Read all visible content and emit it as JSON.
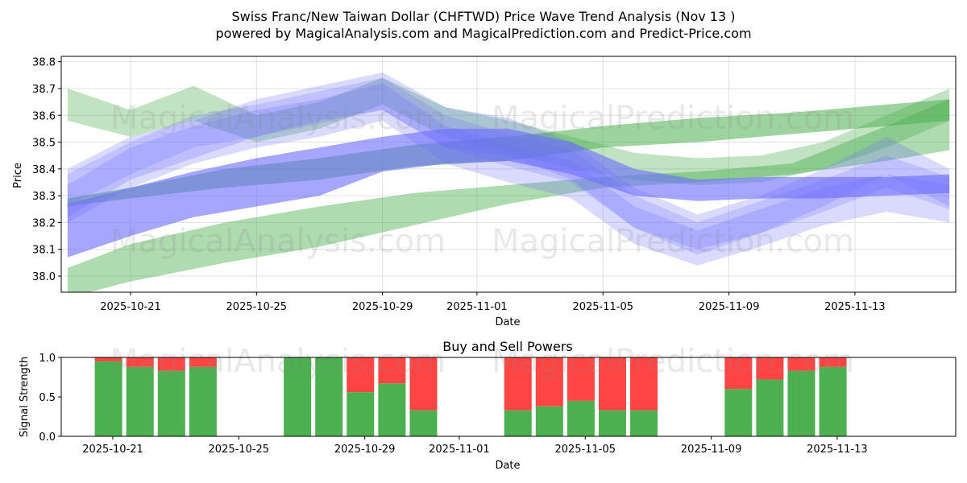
{
  "figure": {
    "title_line1": "Swiss Franc/New Taiwan Dollar (CHFTWD) Price Wave Trend Analysis (Nov 13 )",
    "title_line2": "powered by MagicalAnalysis.com and MagicalPrediction.com and Predict-Price.com",
    "watermarks": [
      "MagicalAnalysis.com",
      "MagicalPrediction.com"
    ]
  },
  "colors": {
    "green": "#4caf50",
    "blue": "#6a6aff",
    "red": "#ff4444"
  },
  "chart_data": [
    {
      "type": "area",
      "title": "",
      "xlabel": "Date",
      "ylabel": "Price",
      "x_start_day": 0,
      "x_end_day": 26.1,
      "xlim_day": [
        -2.2,
        26.2
      ],
      "ylim": [
        37.94,
        38.82
      ],
      "yticks": [
        38.0,
        38.1,
        38.2,
        38.3,
        38.4,
        38.5,
        38.6,
        38.7,
        38.8
      ],
      "ytick_labels": [
        "38.0",
        "38.1",
        "38.2",
        "38.3",
        "38.4",
        "38.5",
        "38.6",
        "38.7",
        "38.8"
      ],
      "xticks_day": [
        0,
        4,
        8,
        11,
        15,
        19,
        23
      ],
      "xtick_labels": [
        "2025-10-21",
        "2025-10-25",
        "2025-10-29",
        "2025-11-01",
        "2025-11-05",
        "2025-11-09",
        "2025-11-13"
      ],
      "series": [
        {
          "name": "green-wave-low",
          "color": "green",
          "opacity": 0.45,
          "x": [
            -2,
            0,
            3,
            6,
            9,
            12,
            15,
            18,
            21,
            24,
            26
          ],
          "upper": [
            38.03,
            38.12,
            38.2,
            38.26,
            38.31,
            38.34,
            38.37,
            38.39,
            38.42,
            38.56,
            38.66
          ],
          "lower": [
            37.92,
            37.98,
            38.05,
            38.11,
            38.19,
            38.27,
            38.33,
            38.35,
            38.38,
            38.43,
            38.47
          ]
        },
        {
          "name": "green-wave-mid",
          "color": "green",
          "opacity": 0.55,
          "x": [
            -2,
            0,
            3,
            6,
            9,
            12,
            15,
            18,
            21,
            24,
            26
          ],
          "upper": [
            38.29,
            38.33,
            38.4,
            38.44,
            38.49,
            38.52,
            38.56,
            38.59,
            38.61,
            38.64,
            38.66
          ],
          "lower": [
            38.26,
            38.29,
            38.33,
            38.36,
            38.41,
            38.43,
            38.48,
            38.5,
            38.53,
            38.56,
            38.58
          ]
        },
        {
          "name": "green-wave-top",
          "color": "green",
          "opacity": 0.35,
          "x": [
            -2,
            0,
            2,
            4,
            6,
            8,
            10,
            12,
            14,
            16,
            18,
            20,
            22,
            24,
            26
          ],
          "upper": [
            38.7,
            38.62,
            38.71,
            38.6,
            38.65,
            38.74,
            38.63,
            38.58,
            38.52,
            38.46,
            38.44,
            38.45,
            38.5,
            38.6,
            38.7
          ],
          "lower": [
            38.58,
            38.52,
            38.58,
            38.5,
            38.55,
            38.64,
            38.52,
            38.46,
            38.4,
            38.36,
            38.34,
            38.35,
            38.4,
            38.48,
            38.58
          ]
        },
        {
          "name": "blue-wave-band",
          "color": "blue",
          "opacity": 0.6,
          "x": [
            -2,
            0,
            2,
            4,
            6,
            8,
            10,
            12,
            14,
            16,
            18,
            20,
            22,
            24,
            26
          ],
          "upper": [
            38.27,
            38.33,
            38.39,
            38.44,
            38.48,
            38.52,
            38.55,
            38.55,
            38.5,
            38.4,
            38.36,
            38.37,
            38.37,
            38.37,
            38.38
          ],
          "lower": [
            38.07,
            38.15,
            38.22,
            38.26,
            38.3,
            38.39,
            38.42,
            38.43,
            38.38,
            38.3,
            38.28,
            38.29,
            38.29,
            38.3,
            38.31
          ]
        },
        {
          "name": "blue-wave-1",
          "color": "blue",
          "opacity": 0.25,
          "x": [
            -2,
            0,
            2,
            4,
            6,
            8,
            10,
            12,
            14,
            16,
            18,
            20,
            22,
            24,
            26
          ],
          "upper": [
            38.4,
            38.52,
            38.58,
            38.66,
            38.71,
            38.76,
            38.63,
            38.59,
            38.5,
            38.33,
            38.23,
            38.3,
            38.4,
            38.52,
            38.4
          ],
          "lower": [
            38.22,
            38.36,
            38.44,
            38.52,
            38.58,
            38.62,
            38.48,
            38.45,
            38.36,
            38.18,
            38.1,
            38.16,
            38.26,
            38.38,
            38.26
          ]
        },
        {
          "name": "blue-wave-2",
          "color": "blue",
          "opacity": 0.25,
          "x": [
            -2,
            0,
            2,
            4,
            6,
            8,
            10,
            12,
            14,
            16,
            18,
            20,
            22,
            24,
            26
          ],
          "upper": [
            38.34,
            38.48,
            38.56,
            38.62,
            38.66,
            38.72,
            38.56,
            38.49,
            38.43,
            38.26,
            38.17,
            38.25,
            38.33,
            38.38,
            38.34
          ],
          "lower": [
            38.2,
            38.33,
            38.42,
            38.48,
            38.52,
            38.58,
            38.42,
            38.35,
            38.29,
            38.12,
            38.04,
            38.11,
            38.19,
            38.24,
            38.2
          ]
        },
        {
          "name": "blue-wave-3",
          "color": "blue",
          "opacity": 0.22,
          "x": [
            -2,
            0,
            2,
            4,
            6,
            8,
            10,
            12,
            14,
            16,
            18,
            20,
            22,
            24,
            26
          ],
          "upper": [
            38.38,
            38.5,
            38.6,
            38.64,
            38.69,
            38.74,
            38.6,
            38.53,
            38.47,
            38.3,
            38.2,
            38.28,
            38.36,
            38.45,
            38.37
          ],
          "lower": [
            38.26,
            38.38,
            38.48,
            38.52,
            38.57,
            38.62,
            38.48,
            38.41,
            38.35,
            38.18,
            38.08,
            38.16,
            38.24,
            38.33,
            38.25
          ]
        }
      ]
    },
    {
      "type": "bar",
      "title": "Buy and Sell Powers",
      "xlabel": "Date",
      "ylabel": "Signal Strength",
      "ylim": [
        0,
        1.0
      ],
      "yticks": [
        0,
        0.5,
        1.0
      ],
      "ytick_labels": [
        "0.0",
        "0.5",
        "1.0"
      ],
      "xlim_day": [
        -2.2,
        26.2
      ],
      "xticks_day": [
        0,
        4,
        8,
        11,
        15,
        19,
        23
      ],
      "xtick_labels": [
        "2025-10-21",
        "2025-10-25",
        "2025-10-29",
        "2025-11-01",
        "2025-11-05",
        "2025-11-09",
        "2025-11-13"
      ],
      "x_day": [
        -0.7,
        0.3,
        1.3,
        2.3,
        5.3,
        6.3,
        7.3,
        8.3,
        9.3,
        12.3,
        13.3,
        14.3,
        15.3,
        16.3,
        19.3,
        20.3,
        21.3,
        22.3
      ],
      "series": [
        {
          "name": "Buy",
          "color": "green",
          "values": [
            0.95,
            0.88,
            0.83,
            0.88,
            1.0,
            1.0,
            0.56,
            0.67,
            0.33,
            0.33,
            0.38,
            0.45,
            0.33,
            0.33,
            0.6,
            0.72,
            0.83,
            0.88
          ]
        },
        {
          "name": "Sell",
          "color": "red",
          "values": [
            0.05,
            0.12,
            0.17,
            0.12,
            0.0,
            0.0,
            0.44,
            0.33,
            0.67,
            0.67,
            0.62,
            0.55,
            0.67,
            0.67,
            0.4,
            0.28,
            0.17,
            0.12
          ]
        }
      ]
    }
  ]
}
